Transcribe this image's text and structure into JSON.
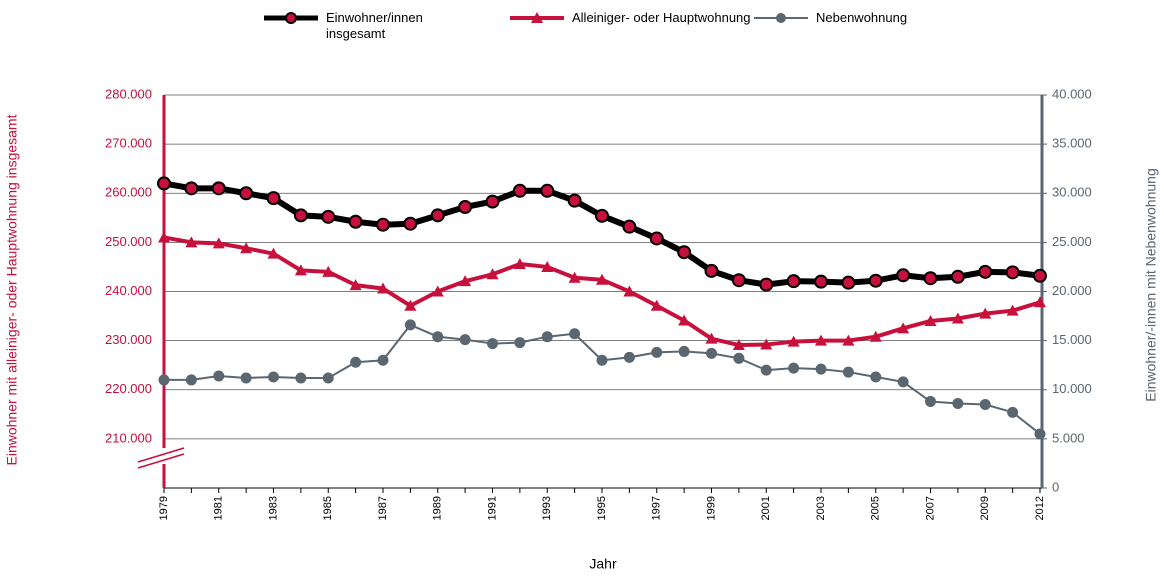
{
  "chart_data": {
    "type": "line",
    "xlabel": "Jahr",
    "ylabel": "Einwohner mit alleiniger- oder Hauptwohnung insgesamt",
    "y2label": "Einwohner/-innen mit Nebenwohnung",
    "categories": [
      "1979",
      null,
      "1981",
      null,
      "1983",
      null,
      "1985",
      null,
      "1987",
      null,
      "1989",
      null,
      "1991",
      null,
      "1993",
      null,
      "1995",
      null,
      "1997",
      null,
      "1999",
      null,
      "2001",
      null,
      "2003",
      null,
      "2005",
      null,
      "2007",
      null,
      "2009",
      null,
      "2012"
    ],
    "series": [
      {
        "name": "Einwohner/innen insgesamt",
        "color": "#000000",
        "marker_color": "#c8103c",
        "values": [
          262000,
          261000,
          261000,
          260000,
          259000,
          255500,
          255200,
          254200,
          253600,
          253800,
          255500,
          257200,
          258300,
          260500,
          260500,
          258500,
          255400,
          253200,
          250800,
          248000,
          244200,
          242300,
          241400,
          242100,
          242000,
          241800,
          242200,
          243300,
          242700,
          243000,
          244000,
          243900,
          243200
        ]
      },
      {
        "name": "Alleiniger- oder Hauptwohnung",
        "color": "#c8103c",
        "values": [
          251000,
          250000,
          249800,
          248800,
          247700,
          244300,
          244000,
          241300,
          240600,
          237100,
          240000,
          242100,
          243500,
          245600,
          245000,
          242800,
          242400,
          240000,
          237100,
          234100,
          230400,
          229100,
          229200,
          229800,
          230000,
          230000,
          230800,
          232500,
          234000,
          234500,
          235500,
          236100,
          237800
        ]
      },
      {
        "name": "Nebenwohnung",
        "color": "#5a6670",
        "axis": "y2",
        "values": [
          11000,
          11000,
          11400,
          11200,
          11300,
          11200,
          11200,
          12800,
          13000,
          16600,
          15400,
          15100,
          14700,
          14800,
          15400,
          15700,
          13000,
          13300,
          13800,
          13900,
          13700,
          13200,
          12000,
          12200,
          12100,
          11800,
          11300,
          10800,
          8800,
          8600,
          8500,
          7700,
          5500
        ]
      }
    ],
    "ylim": [
      200000,
      280000
    ],
    "yticks": [
      {
        "value": 210000,
        "label": "210.000"
      },
      {
        "value": 220000,
        "label": "220.000"
      },
      {
        "value": 230000,
        "label": "230.000"
      },
      {
        "value": 240000,
        "label": "240.000"
      },
      {
        "value": 250000,
        "label": "250.000"
      },
      {
        "value": 260000,
        "label": "260.000"
      },
      {
        "value": 270000,
        "label": "270.000"
      },
      {
        "value": 280000,
        "label": "280.000"
      }
    ],
    "y2lim": [
      0,
      40000
    ],
    "y2ticks": [
      0,
      {
        "value": 5000,
        "label": "5.000"
      },
      {
        "value": 10000,
        "label": "10.000"
      },
      {
        "value": 15000,
        "label": "15.000"
      },
      {
        "value": 20000,
        "label": "20.000"
      },
      {
        "value": 25000,
        "label": "25.000"
      },
      {
        "value": 30000,
        "label": "30.000"
      },
      {
        "value": 35000,
        "label": "35.000"
      },
      {
        "value": 40000,
        "label": "40.000"
      }
    ],
    "grid": true,
    "legend": "top"
  }
}
